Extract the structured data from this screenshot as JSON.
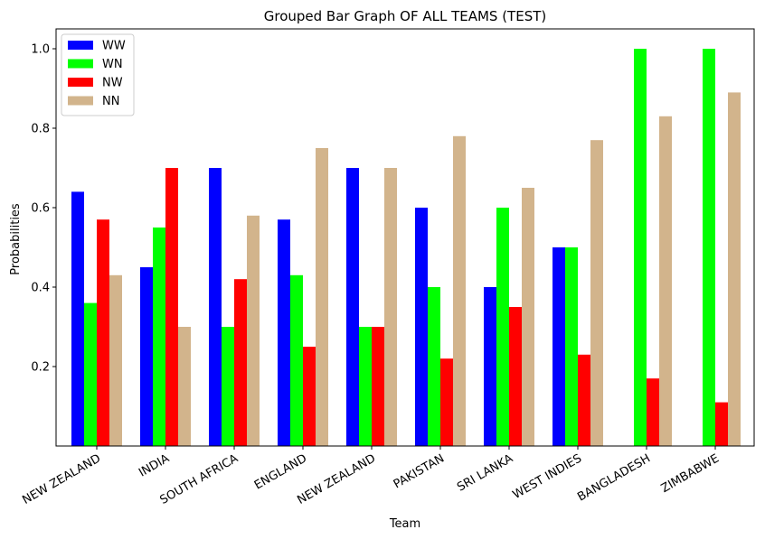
{
  "chart_data": {
    "type": "bar",
    "title": "Grouped Bar Graph OF ALL TEAMS (TEST)",
    "xlabel": "Team",
    "ylabel": "Probabilities",
    "ylim": [
      0,
      1.05
    ],
    "yticks": [
      0.2,
      0.4,
      0.6,
      0.8,
      1.0
    ],
    "ytick_labels": [
      "0.2",
      "0.4",
      "0.6",
      "0.8",
      "1.0"
    ],
    "grid": false,
    "legend_position": "top-left",
    "categories": [
      "NEW ZEALAND",
      "INDIA",
      "SOUTH AFRICA",
      "ENGLAND",
      "NEW ZEALAND",
      "PAKISTAN",
      "SRI LANKA",
      "WEST INDIES",
      "BANGLADESH",
      "ZIMBABWE"
    ],
    "series": [
      {
        "name": "WW",
        "color": "#0000ff",
        "values": [
          0.64,
          0.45,
          0.7,
          0.57,
          0.7,
          0.6,
          0.4,
          0.5,
          0,
          0
        ]
      },
      {
        "name": "WN",
        "color": "#00ff00",
        "values": [
          0.36,
          0.55,
          0.3,
          0.43,
          0.3,
          0.4,
          0.6,
          0.5,
          1.0,
          1.0
        ]
      },
      {
        "name": "NW",
        "color": "#ff0000",
        "values": [
          0.57,
          0.7,
          0.42,
          0.25,
          0.3,
          0.22,
          0.35,
          0.23,
          0.17,
          0.11
        ]
      },
      {
        "name": "NN",
        "color": "#d2b48c",
        "values": [
          0.43,
          0.3,
          0.58,
          0.75,
          0.7,
          0.78,
          0.65,
          0.77,
          0.83,
          0.89
        ]
      }
    ]
  }
}
